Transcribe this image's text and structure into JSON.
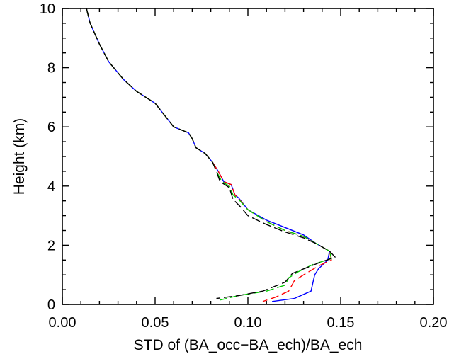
{
  "chart_data": {
    "type": "line",
    "title": "",
    "xlabel": "STD of (BA_occ−BA_ech)/BA_ech",
    "ylabel": "Height (km)",
    "xlim": [
      0.0,
      0.2
    ],
    "ylim": [
      0,
      10
    ],
    "xticks": [
      "0.00",
      "0.05",
      "0.10",
      "0.15",
      "0.20"
    ],
    "xtick_values": [
      0.0,
      0.05,
      0.1,
      0.15,
      0.2
    ],
    "yticks": [
      "0",
      "2",
      "4",
      "6",
      "8",
      "10"
    ],
    "ytick_values": [
      0,
      2,
      4,
      6,
      8,
      10
    ],
    "grid": false,
    "legend": "none",
    "series": [
      {
        "color": "#0000ff",
        "dash": "solid",
        "points": [
          [
            0.013,
            10.0
          ],
          [
            0.015,
            9.5
          ],
          [
            0.02,
            8.8
          ],
          [
            0.025,
            8.2
          ],
          [
            0.033,
            7.6
          ],
          [
            0.04,
            7.2
          ],
          [
            0.05,
            6.8
          ],
          [
            0.055,
            6.4
          ],
          [
            0.06,
            6.0
          ],
          [
            0.068,
            5.8
          ],
          [
            0.07,
            5.6
          ],
          [
            0.072,
            5.3
          ],
          [
            0.077,
            5.1
          ],
          [
            0.081,
            4.8
          ],
          [
            0.084,
            4.5
          ],
          [
            0.087,
            4.15
          ],
          [
            0.091,
            4.05
          ],
          [
            0.093,
            3.7
          ],
          [
            0.095,
            3.6
          ],
          [
            0.1,
            3.2
          ],
          [
            0.11,
            2.85
          ],
          [
            0.12,
            2.6
          ],
          [
            0.13,
            2.35
          ],
          [
            0.137,
            2.05
          ],
          [
            0.144,
            1.8
          ],
          [
            0.143,
            1.5
          ],
          [
            0.138,
            1.2
          ],
          [
            0.136,
            1.0
          ],
          [
            0.134,
            0.45
          ],
          [
            0.125,
            0.2
          ],
          [
            0.113,
            0.1
          ]
        ]
      },
      {
        "color": "#ff0000",
        "dash": "dashed",
        "points": [
          [
            0.013,
            10.0
          ],
          [
            0.015,
            9.5
          ],
          [
            0.02,
            8.8
          ],
          [
            0.025,
            8.2
          ],
          [
            0.033,
            7.6
          ],
          [
            0.04,
            7.2
          ],
          [
            0.05,
            6.8
          ],
          [
            0.055,
            6.4
          ],
          [
            0.06,
            6.0
          ],
          [
            0.068,
            5.8
          ],
          [
            0.07,
            5.6
          ],
          [
            0.072,
            5.3
          ],
          [
            0.077,
            5.1
          ],
          [
            0.081,
            4.8
          ],
          [
            0.084,
            4.5
          ],
          [
            0.087,
            4.15
          ],
          [
            0.091,
            4.05
          ],
          [
            0.093,
            3.7
          ],
          [
            0.096,
            3.5
          ],
          [
            0.1,
            3.2
          ],
          [
            0.11,
            2.8
          ],
          [
            0.12,
            2.5
          ],
          [
            0.13,
            2.3
          ],
          [
            0.137,
            2.05
          ],
          [
            0.144,
            1.8
          ],
          [
            0.145,
            1.5
          ],
          [
            0.138,
            1.3
          ],
          [
            0.13,
            1.0
          ],
          [
            0.125,
            0.8
          ],
          [
            0.122,
            0.45
          ],
          [
            0.115,
            0.25
          ],
          [
            0.108,
            0.1
          ]
        ]
      },
      {
        "color": "#00cc00",
        "dash": "dashed",
        "points": [
          [
            0.013,
            10.0
          ],
          [
            0.015,
            9.5
          ],
          [
            0.02,
            8.8
          ],
          [
            0.025,
            8.2
          ],
          [
            0.033,
            7.6
          ],
          [
            0.04,
            7.2
          ],
          [
            0.05,
            6.8
          ],
          [
            0.055,
            6.4
          ],
          [
            0.06,
            6.0
          ],
          [
            0.068,
            5.8
          ],
          [
            0.07,
            5.6
          ],
          [
            0.072,
            5.3
          ],
          [
            0.077,
            5.1
          ],
          [
            0.081,
            4.8
          ],
          [
            0.083,
            4.5
          ],
          [
            0.086,
            4.15
          ],
          [
            0.09,
            4.0
          ],
          [
            0.092,
            3.7
          ],
          [
            0.095,
            3.55
          ],
          [
            0.1,
            3.2
          ],
          [
            0.11,
            2.8
          ],
          [
            0.12,
            2.5
          ],
          [
            0.13,
            2.3
          ],
          [
            0.137,
            2.05
          ],
          [
            0.144,
            1.8
          ],
          [
            0.145,
            1.55
          ],
          [
            0.135,
            1.35
          ],
          [
            0.127,
            1.1
          ],
          [
            0.122,
            0.9
          ],
          [
            0.12,
            0.65
          ],
          [
            0.11,
            0.45
          ],
          [
            0.095,
            0.3
          ],
          [
            0.085,
            0.15
          ]
        ]
      },
      {
        "color": "#000000",
        "dash": "dashed",
        "points": [
          [
            0.013,
            10.0
          ],
          [
            0.015,
            9.5
          ],
          [
            0.02,
            8.8
          ],
          [
            0.025,
            8.2
          ],
          [
            0.033,
            7.6
          ],
          [
            0.04,
            7.2
          ],
          [
            0.05,
            6.8
          ],
          [
            0.055,
            6.4
          ],
          [
            0.06,
            6.0
          ],
          [
            0.068,
            5.8
          ],
          [
            0.07,
            5.6
          ],
          [
            0.072,
            5.3
          ],
          [
            0.077,
            5.1
          ],
          [
            0.081,
            4.8
          ],
          [
            0.083,
            4.5
          ],
          [
            0.085,
            4.15
          ],
          [
            0.09,
            3.95
          ],
          [
            0.092,
            3.55
          ],
          [
            0.096,
            3.3
          ],
          [
            0.1,
            3.0
          ],
          [
            0.11,
            2.7
          ],
          [
            0.12,
            2.45
          ],
          [
            0.13,
            2.25
          ],
          [
            0.137,
            2.05
          ],
          [
            0.144,
            1.8
          ],
          [
            0.147,
            1.6
          ],
          [
            0.138,
            1.4
          ],
          [
            0.13,
            1.2
          ],
          [
            0.124,
            1.05
          ],
          [
            0.12,
            0.75
          ],
          [
            0.108,
            0.45
          ],
          [
            0.095,
            0.3
          ],
          [
            0.083,
            0.2
          ]
        ]
      }
    ]
  }
}
